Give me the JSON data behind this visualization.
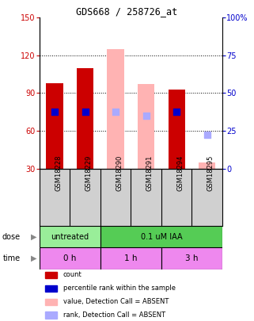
{
  "title": "GDS668 / 258726_at",
  "samples": [
    "GSM18228",
    "GSM18229",
    "GSM18290",
    "GSM18291",
    "GSM18294",
    "GSM18295"
  ],
  "bar_values": [
    98,
    110,
    null,
    null,
    93,
    null
  ],
  "bar_colors_present": "#cc0000",
  "bar_colors_absent": "#ffb3b3",
  "absent_bar_values": [
    null,
    null,
    125,
    97,
    null,
    35
  ],
  "blue_dot_y_present": [
    75,
    75,
    null,
    null,
    75,
    null
  ],
  "blue_dot_y_absent": [
    null,
    null,
    75,
    72,
    null,
    57
  ],
  "blue_dot_color_present": "#0000cc",
  "blue_dot_color_absent": "#aaaaff",
  "ylim_left": [
    30,
    150
  ],
  "ylim_right": [
    0,
    100
  ],
  "yticks_left": [
    30,
    60,
    90,
    120,
    150
  ],
  "yticks_right": [
    0,
    25,
    50,
    75,
    100
  ],
  "ytick_labels_right": [
    "0",
    "25",
    "50",
    "75",
    "100%"
  ],
  "left_axis_color": "#cc0000",
  "right_axis_color": "#0000cc",
  "grid_lines": [
    60,
    90,
    120
  ],
  "dose_untreated_color": "#99ee99",
  "dose_iaa_color": "#55cc55",
  "dose_untreated_text": "untreated",
  "dose_iaa_text": "0.1 uM IAA",
  "time_color": "#ee88ee",
  "time_0h": "0 h",
  "time_1h": "1 h",
  "time_3h": "3 h",
  "sample_bg_color": "#d0d0d0",
  "legend_items": [
    {
      "color": "#cc0000",
      "label": "count"
    },
    {
      "color": "#0000cc",
      "label": "percentile rank within the sample"
    },
    {
      "color": "#ffb3b3",
      "label": "value, Detection Call = ABSENT"
    },
    {
      "color": "#aaaaff",
      "label": "rank, Detection Call = ABSENT"
    }
  ],
  "dose_label": "dose",
  "time_label": "time",
  "bar_width": 0.55,
  "dot_size": 40
}
